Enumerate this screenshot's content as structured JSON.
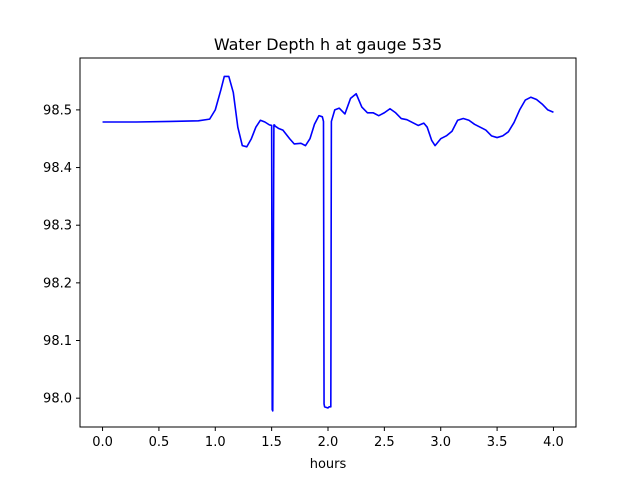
{
  "chart_data": {
    "type": "line",
    "title": "Water Depth h at gauge 535",
    "xlabel": "hours",
    "ylabel": "",
    "xlim": [
      -0.2,
      4.2
    ],
    "ylim": [
      97.95,
      98.59
    ],
    "xticks": [
      0.0,
      0.5,
      1.0,
      1.5,
      2.0,
      2.5,
      3.0,
      3.5,
      4.0
    ],
    "xtick_labels": [
      "0.0",
      "0.5",
      "1.0",
      "1.5",
      "2.0",
      "2.5",
      "3.0",
      "3.5",
      "4.0"
    ],
    "yticks": [
      98.0,
      98.1,
      98.2,
      98.3,
      98.4,
      98.5
    ],
    "ytick_labels": [
      "98.0",
      "98.1",
      "98.2",
      "98.3",
      "98.4",
      "98.5"
    ],
    "grid": false,
    "line_color": "#0000ff",
    "series": [
      {
        "x": [
          0.0,
          0.3,
          0.6,
          0.85,
          0.95,
          1.0,
          1.05,
          1.08,
          1.12,
          1.16,
          1.2,
          1.24,
          1.28,
          1.32,
          1.36,
          1.4,
          1.44,
          1.48,
          1.5,
          1.505,
          1.51,
          1.52,
          1.525,
          1.53,
          1.56,
          1.6,
          1.66,
          1.7,
          1.76,
          1.8,
          1.84,
          1.88,
          1.92,
          1.95,
          1.96,
          1.965,
          1.97,
          2.0,
          2.01,
          2.025,
          2.03,
          2.06,
          2.1,
          2.15,
          2.2,
          2.25,
          2.3,
          2.35,
          2.4,
          2.45,
          2.5,
          2.55,
          2.6,
          2.65,
          2.7,
          2.75,
          2.8,
          2.85,
          2.88,
          2.92,
          2.95,
          3.0,
          3.05,
          3.1,
          3.15,
          3.2,
          3.25,
          3.3,
          3.35,
          3.4,
          3.45,
          3.5,
          3.55,
          3.6,
          3.65,
          3.7,
          3.75,
          3.8,
          3.85,
          3.9,
          3.95,
          4.0
        ],
        "y": [
          98.479,
          98.479,
          98.48,
          98.481,
          98.484,
          98.5,
          98.535,
          98.558,
          98.558,
          98.53,
          98.47,
          98.438,
          98.436,
          98.45,
          98.47,
          98.482,
          98.479,
          98.474,
          98.473,
          97.98,
          97.978,
          98.474,
          98.474,
          98.472,
          98.468,
          98.465,
          98.45,
          98.441,
          98.442,
          98.438,
          98.45,
          98.475,
          98.49,
          98.488,
          98.48,
          97.99,
          97.985,
          97.983,
          97.985,
          97.985,
          98.48,
          98.5,
          98.503,
          98.493,
          98.52,
          98.528,
          98.505,
          98.495,
          98.495,
          98.49,
          98.495,
          98.502,
          98.495,
          98.485,
          98.483,
          98.478,
          98.473,
          98.477,
          98.47,
          98.447,
          98.438,
          98.45,
          98.455,
          98.463,
          98.482,
          98.485,
          98.482,
          98.475,
          98.47,
          98.465,
          98.455,
          98.452,
          98.455,
          98.462,
          98.478,
          98.5,
          98.517,
          98.522,
          98.518,
          98.51,
          98.5,
          98.496
        ]
      }
    ]
  }
}
